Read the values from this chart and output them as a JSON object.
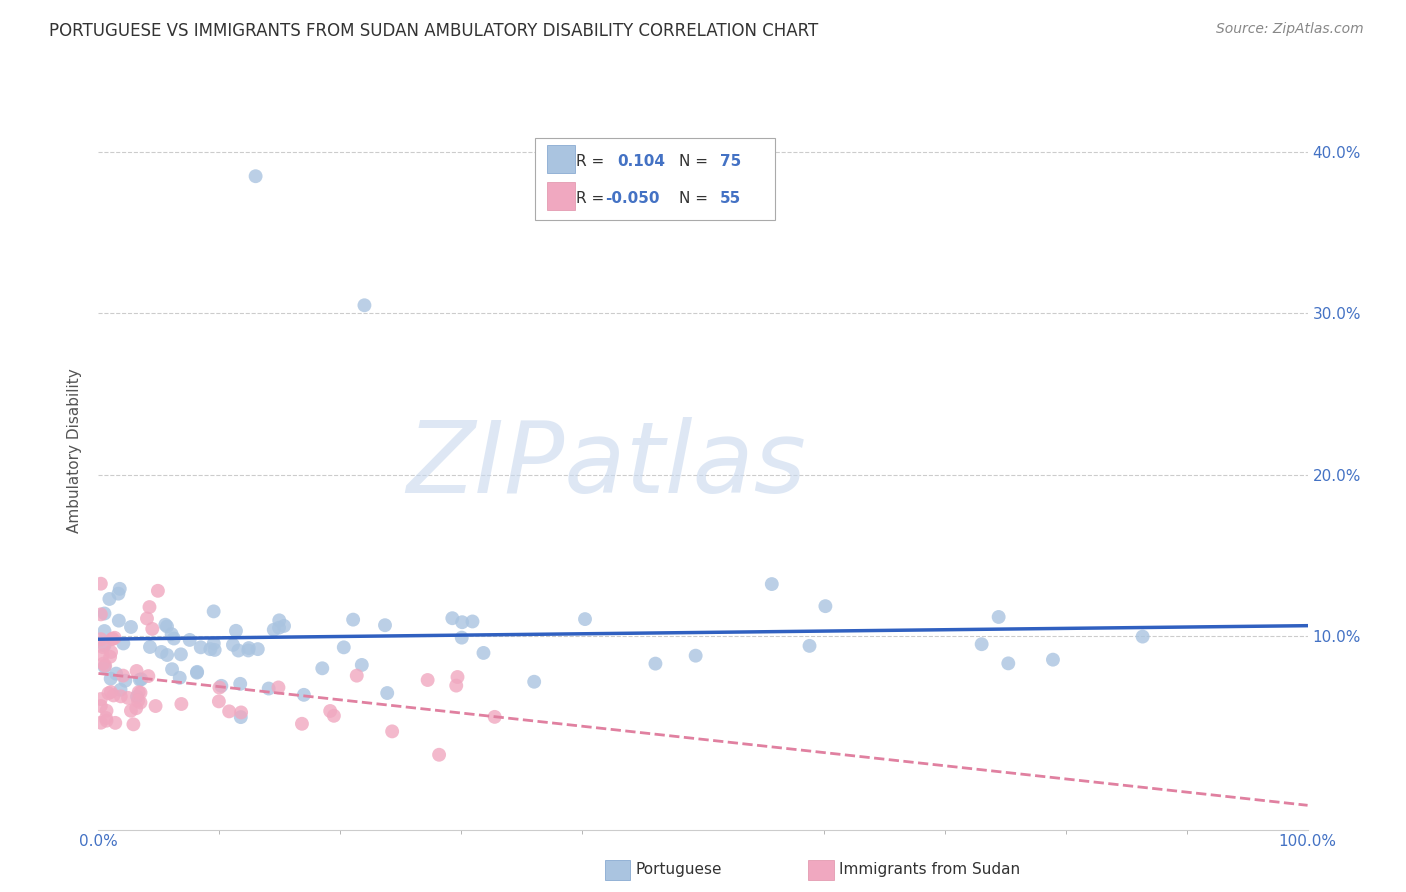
{
  "title": "PORTUGUESE VS IMMIGRANTS FROM SUDAN AMBULATORY DISABILITY CORRELATION CHART",
  "source": "Source: ZipAtlas.com",
  "ylabel": "Ambulatory Disability",
  "watermark": "ZIPatlas",
  "blue_color": "#aac4e0",
  "pink_color": "#f0a8c0",
  "blue_line_color": "#3060c0",
  "pink_line_color": "#e080a0",
  "label_color": "#4472c4",
  "tick_color": "#4472c4",
  "xlim": [
    0.0,
    1.0
  ],
  "ylim": [
    -0.02,
    0.45
  ],
  "right_yticks": [
    0.1,
    0.2,
    0.3,
    0.4
  ],
  "right_yticklabels": [
    "10.0%",
    "20.0%",
    "30.0%",
    "40.0%"
  ],
  "background_color": "#ffffff",
  "grid_color": "#cccccc",
  "title_fontsize": 12,
  "source_fontsize": 10,
  "axis_label_fontsize": 11,
  "tick_fontsize": 11,
  "watermark_fontsize": 72,
  "watermark_color": "#c8d8ee",
  "watermark_alpha": 0.6
}
